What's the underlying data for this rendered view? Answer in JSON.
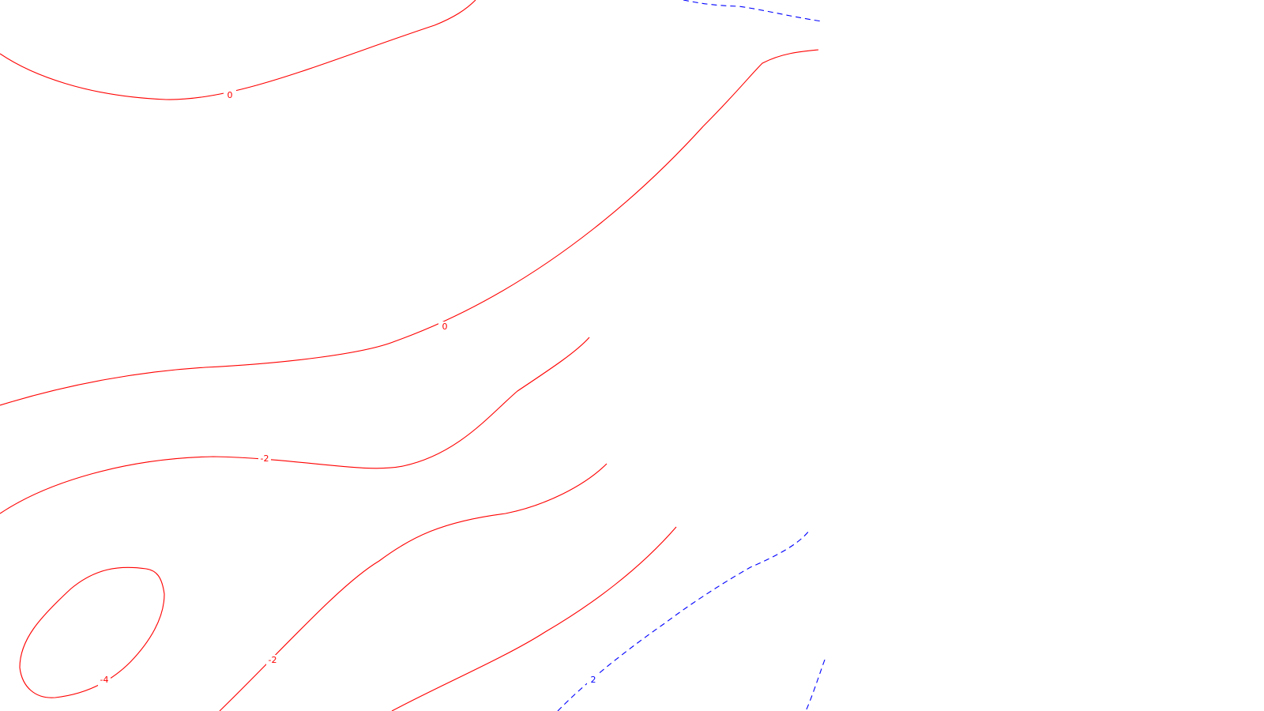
{
  "chart_data": {
    "type": "contour",
    "title": "",
    "xlabel": "",
    "ylabel": "",
    "grid": false,
    "legend": "none",
    "colors": {
      "positive": "#0000ff",
      "non_positive": "#ff0000"
    },
    "contours": [
      {
        "level": 0,
        "label": "0"
      },
      {
        "level": 0,
        "label": "0"
      },
      {
        "level": -2,
        "label": "-2"
      },
      {
        "level": -2,
        "label": "-2"
      },
      {
        "level": -2,
        "label": ""
      },
      {
        "level": -4,
        "label": "-4"
      },
      {
        "level": 2,
        "label": "2"
      },
      {
        "level": 2,
        "label": ""
      },
      {
        "level": 2,
        "label": ""
      }
    ]
  }
}
